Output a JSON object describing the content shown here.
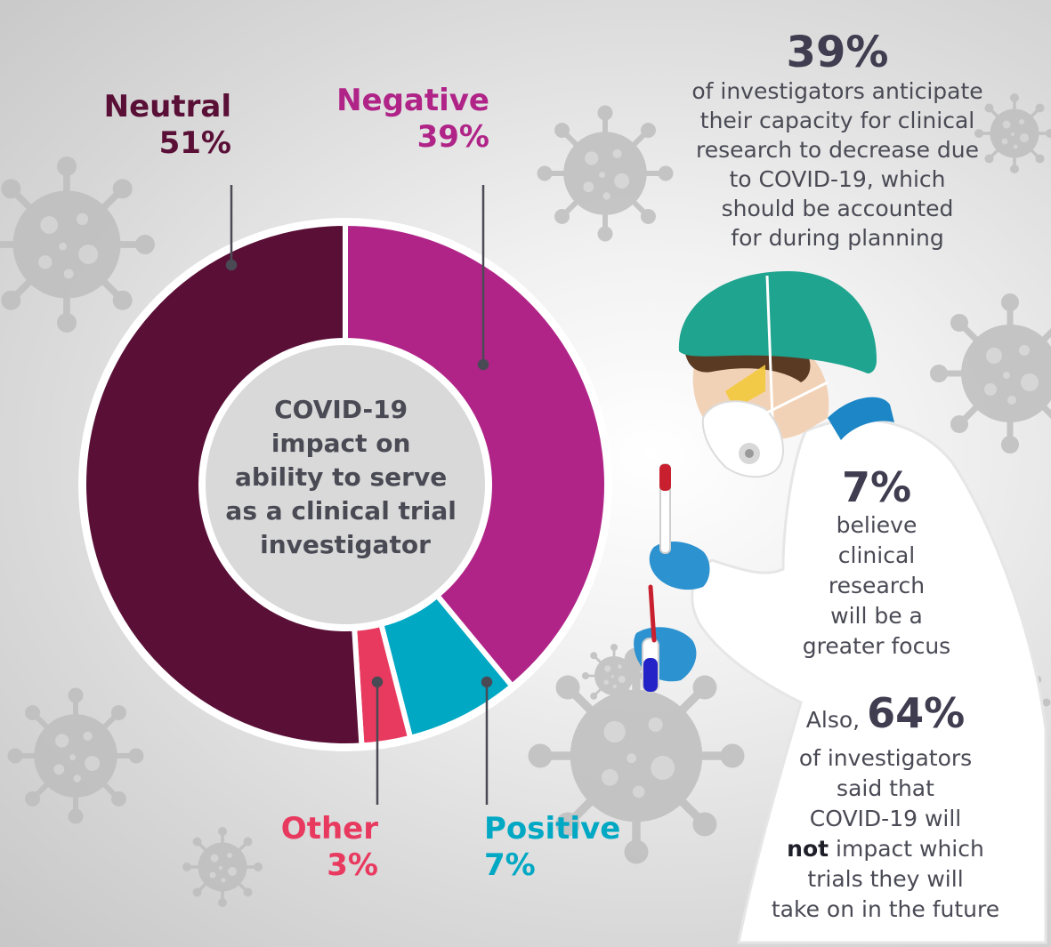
{
  "chart_data": {
    "type": "pie",
    "style": "donut",
    "title": "COVID-19 impact on ability to serve as a clinical trial investigator",
    "title_lines": [
      "COVID-19",
      "impact on",
      "ability to serve",
      "as a clinical trial",
      "investigator"
    ],
    "categories": [
      "Negative",
      "Positive",
      "Other",
      "Neutral"
    ],
    "values": [
      39,
      7,
      3,
      51
    ],
    "value_labels": [
      "39%",
      "7%",
      "3%",
      "51%"
    ],
    "colors": [
      "#b02488",
      "#00a8c4",
      "#e8395f",
      "#5a0f37"
    ],
    "label_colors": [
      "#b02488",
      "#00a8c4",
      "#e8395f",
      "#5a0f37"
    ],
    "legend": "callouts"
  },
  "stat_negative": {
    "figure": "39%",
    "lines": [
      "of investigators anticipate",
      "their capacity for clinical",
      "research to decrease due",
      "to COVID-19, which",
      "should be accounted",
      "for during planning"
    ]
  },
  "stat_positive": {
    "figure": "7%",
    "lines": [
      "believe",
      "clinical",
      "research",
      "will be a",
      "greater focus"
    ]
  },
  "stat_neutral": {
    "prefix": "Also,",
    "figure": "64%",
    "line1": "of investigators",
    "line2": "said that",
    "line3": "COVID-19 will",
    "not_word": "not",
    "line4_rest": " impact which",
    "line5": "trials they will",
    "line6": "take on in the future"
  },
  "colors": {
    "stat_text": "#4a4a55",
    "stat_figure": "#3f3d4f",
    "leader_line": "#4a4a55",
    "virus": "#bdbdbd"
  }
}
